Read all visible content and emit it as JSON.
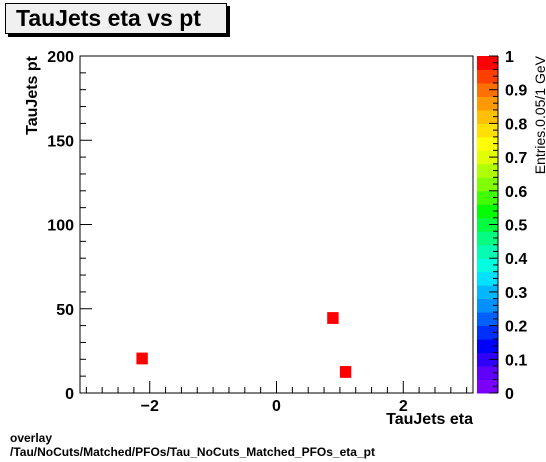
{
  "title": "TauJets eta vs pt",
  "footer": {
    "line1": "overlay",
    "line2": "/Tau/NoCuts/Matched/PFOs/Tau_NoCuts_Matched_PFOs_eta_pt"
  },
  "chart_data": {
    "type": "heatmap",
    "title": "TauJets eta vs pt",
    "xlabel": "TauJets eta",
    "ylabel": "TauJets pt",
    "zlabel": "Entries.0.05/1 GeV",
    "xlim": [
      -3.1,
      3.1
    ],
    "ylim": [
      0,
      200
    ],
    "zlim": [
      0,
      1
    ],
    "xticks": [
      -2,
      0,
      2
    ],
    "xtick_labels": [
      "−2",
      "0",
      "2"
    ],
    "yticks": [
      0,
      50,
      100,
      150,
      200
    ],
    "ytick_labels": [
      "0",
      "50",
      "100",
      "150",
      "200"
    ],
    "zticks": [
      0,
      0.1,
      0.2,
      0.3,
      0.4,
      0.5,
      0.6,
      0.7,
      0.8,
      0.9,
      1
    ],
    "ztick_labels": [
      "0",
      "0.1",
      "0.2",
      "0.3",
      "0.4",
      "0.5",
      "0.6",
      "0.7",
      "0.8",
      "0.9",
      "1"
    ],
    "bin_width": {
      "x": 0.18,
      "y": 7
    },
    "points": [
      {
        "x": -2.12,
        "y": 20.5,
        "z": 1
      },
      {
        "x": 0.89,
        "y": 44.5,
        "z": 1
      },
      {
        "x": 1.09,
        "y": 12.5,
        "z": 1
      }
    ],
    "palette": [
      "#7a00ff",
      "#6000ff",
      "#3000ff",
      "#0000ff",
      "#0030ff",
      "#0060ff",
      "#0090ff",
      "#00b8ff",
      "#00e0ff",
      "#00ffe0",
      "#00ffb0",
      "#00ff80",
      "#00ff40",
      "#00ff00",
      "#40ff00",
      "#80ff00",
      "#b0ff00",
      "#e0ff00",
      "#ffff00",
      "#ffe000",
      "#ffc000",
      "#ff9900",
      "#ff7000",
      "#ff4000",
      "#ff0000"
    ],
    "marker_color": "#ff0000"
  }
}
